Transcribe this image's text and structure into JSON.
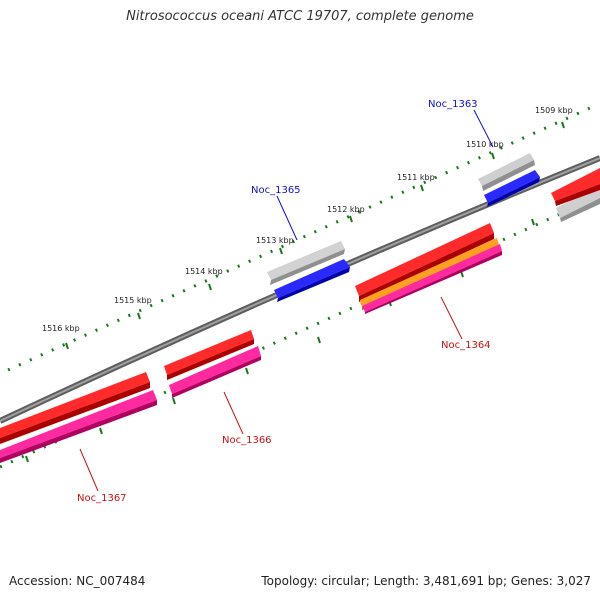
{
  "title": "Nitrosococcus oceani ATCC 19707, complete genome",
  "footer": {
    "accession": "Accession: NC_007484",
    "summary": "Topology: circular; Length: 3,481,691 bp; Genes: 3,027"
  },
  "colors": {
    "backbone": "#7a7a7a",
    "tick": "#1a7a1a",
    "tick_label": "#222222",
    "forward_cds": "#ee0000",
    "reverse_cds": "#ee0000",
    "gene_grey": "#a9a9a9",
    "gene_blue": "#0000dd",
    "gene_magenta": "#e0158a",
    "gene_orange": "#f08c00",
    "label_forward": "#1111cc",
    "label_reverse": "#cc1111"
  },
  "tick_labels": [
    {
      "text": "1509 kbp",
      "kbp": 1509
    },
    {
      "text": "1510 kbp",
      "kbp": 1510
    },
    {
      "text": "1511 kbp",
      "kbp": 1511
    },
    {
      "text": "1512 kbp",
      "kbp": 1512
    },
    {
      "text": "1513 kbp",
      "kbp": 1513
    },
    {
      "text": "1514 kbp",
      "kbp": 1514
    },
    {
      "text": "1515 kbp",
      "kbp": 1515
    },
    {
      "text": "1516 kbp",
      "kbp": 1516
    }
  ],
  "gene_labels": {
    "noc_1363": "Noc_1363",
    "noc_1365": "Noc_1365",
    "noc_1364": "Noc_1364",
    "noc_1366": "Noc_1366",
    "noc_1367": "Noc_1367"
  }
}
